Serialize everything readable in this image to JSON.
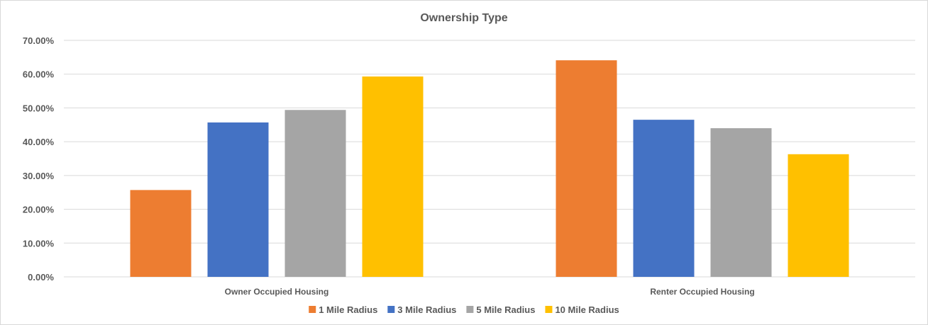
{
  "chart_data": {
    "type": "bar",
    "title": "Ownership Type",
    "categories": [
      "Owner Occupied Housing",
      "Renter Occupied Housing"
    ],
    "series": [
      {
        "name": "1 Mile Radius",
        "color": "#ED7D31",
        "values": [
          0.257,
          0.641
        ]
      },
      {
        "name": "3 Mile Radius",
        "color": "#4472C4",
        "values": [
          0.457,
          0.465
        ]
      },
      {
        "name": "5 Mile Radius",
        "color": "#A5A5A5",
        "values": [
          0.494,
          0.44
        ]
      },
      {
        "name": "10 Mile Radius",
        "color": "#FFC000",
        "values": [
          0.593,
          0.363
        ]
      }
    ],
    "ylim": [
      0,
      0.7
    ],
    "yticks": [
      {
        "value": 0.0,
        "label": "0.00%"
      },
      {
        "value": 0.1,
        "label": "10.00%"
      },
      {
        "value": 0.2,
        "label": "20.00%"
      },
      {
        "value": 0.3,
        "label": "30.00%"
      },
      {
        "value": 0.4,
        "label": "40.00%"
      },
      {
        "value": 0.5,
        "label": "50.00%"
      },
      {
        "value": 0.6,
        "label": "60.00%"
      },
      {
        "value": 0.7,
        "label": "70.00%"
      }
    ],
    "xlabel": "",
    "ylabel": "",
    "grid": true,
    "legend_position": "bottom",
    "colors": {
      "grid": "#d9d9d9",
      "text": "#595959"
    }
  }
}
